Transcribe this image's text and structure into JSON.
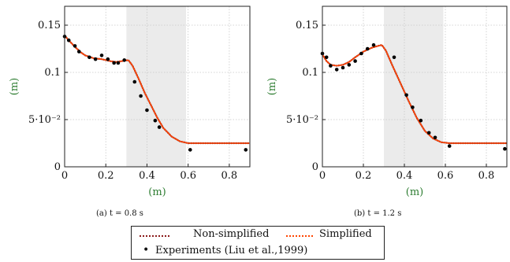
{
  "chart_data": [
    {
      "type": "line",
      "caption": "(a) t = 0.8 s",
      "xlabel": "(m)",
      "ylabel": "(m)",
      "xlim": [
        0,
        0.9
      ],
      "ylim": [
        0,
        0.17
      ],
      "x_ticks": [
        0,
        0.2,
        0.4,
        0.6,
        0.8
      ],
      "x_tick_labels": [
        "0",
        "0.2",
        "0.4",
        "0.6",
        "0.8"
      ],
      "y_ticks": [
        0,
        0.05,
        0.1,
        0.15
      ],
      "y_tick_labels": [
        "0",
        "5·10⁻²",
        "0.1",
        "0.15"
      ],
      "grid": true,
      "shaded_region": [
        0.3,
        0.59
      ],
      "series": [
        {
          "name": "Non-simplified",
          "style": "dotted",
          "color": "#8b1a1a",
          "x": [
            0,
            0.02,
            0.05,
            0.08,
            0.1,
            0.14,
            0.18,
            0.22,
            0.25,
            0.28,
            0.31,
            0.33,
            0.36,
            0.39,
            0.42,
            0.45,
            0.48,
            0.52,
            0.56,
            0.6,
            0.65,
            0.75,
            0.9
          ],
          "y": [
            0.139,
            0.134,
            0.127,
            0.121,
            0.118,
            0.115,
            0.114,
            0.112,
            0.111,
            0.112,
            0.113,
            0.107,
            0.093,
            0.078,
            0.065,
            0.052,
            0.041,
            0.032,
            0.027,
            0.025,
            0.025,
            0.025,
            0.025
          ]
        },
        {
          "name": "Simplified",
          "style": "dotted",
          "color": "#ff4500",
          "x": [
            0,
            0.02,
            0.05,
            0.08,
            0.1,
            0.14,
            0.18,
            0.22,
            0.25,
            0.28,
            0.31,
            0.33,
            0.36,
            0.39,
            0.42,
            0.45,
            0.48,
            0.52,
            0.56,
            0.6,
            0.65,
            0.75,
            0.9
          ],
          "y": [
            0.139,
            0.134,
            0.127,
            0.121,
            0.118,
            0.115,
            0.114,
            0.112,
            0.111,
            0.112,
            0.113,
            0.107,
            0.093,
            0.078,
            0.065,
            0.052,
            0.041,
            0.032,
            0.027,
            0.025,
            0.025,
            0.025,
            0.025
          ]
        },
        {
          "name": "Experiments (Liu et al.,1999)",
          "style": "markers",
          "color": "#000000",
          "x": [
            0,
            0.02,
            0.05,
            0.07,
            0.12,
            0.15,
            0.18,
            0.21,
            0.24,
            0.26,
            0.29,
            0.34,
            0.37,
            0.4,
            0.44,
            0.46,
            0.61,
            0.88
          ],
          "y": [
            0.138,
            0.134,
            0.128,
            0.122,
            0.116,
            0.114,
            0.118,
            0.114,
            0.11,
            0.11,
            0.113,
            0.09,
            0.075,
            0.06,
            0.049,
            0.042,
            0.018,
            0.018
          ]
        }
      ]
    },
    {
      "type": "line",
      "caption": "(b) t = 1.2 s",
      "xlabel": "(m)",
      "ylabel": "(m)",
      "xlim": [
        0,
        0.9
      ],
      "ylim": [
        0,
        0.17
      ],
      "x_ticks": [
        0,
        0.2,
        0.4,
        0.6,
        0.8
      ],
      "x_tick_labels": [
        "0",
        "0.2",
        "0.4",
        "0.6",
        "0.8"
      ],
      "y_ticks": [
        0,
        0.05,
        0.1,
        0.15
      ],
      "y_tick_labels": [
        "0",
        "5·10⁻²",
        "0.1",
        "0.15"
      ],
      "grid": true,
      "shaded_region": [
        0.3,
        0.59
      ],
      "series": [
        {
          "name": "Non-simplified",
          "style": "dotted",
          "color": "#8b1a1a",
          "x": [
            0,
            0.02,
            0.04,
            0.07,
            0.1,
            0.13,
            0.16,
            0.2,
            0.24,
            0.27,
            0.29,
            0.31,
            0.34,
            0.38,
            0.42,
            0.46,
            0.5,
            0.54,
            0.58,
            0.62,
            0.7,
            0.8,
            0.9
          ],
          "y": [
            0.119,
            0.112,
            0.108,
            0.107,
            0.108,
            0.111,
            0.116,
            0.122,
            0.126,
            0.128,
            0.129,
            0.123,
            0.108,
            0.089,
            0.07,
            0.052,
            0.038,
            0.03,
            0.026,
            0.025,
            0.025,
            0.025,
            0.025
          ]
        },
        {
          "name": "Simplified",
          "style": "dotted",
          "color": "#ff4500",
          "x": [
            0,
            0.02,
            0.04,
            0.07,
            0.1,
            0.13,
            0.16,
            0.2,
            0.24,
            0.27,
            0.29,
            0.31,
            0.34,
            0.38,
            0.42,
            0.46,
            0.5,
            0.54,
            0.58,
            0.62,
            0.7,
            0.8,
            0.9
          ],
          "y": [
            0.119,
            0.112,
            0.108,
            0.107,
            0.108,
            0.111,
            0.116,
            0.122,
            0.126,
            0.128,
            0.129,
            0.123,
            0.108,
            0.089,
            0.07,
            0.052,
            0.038,
            0.03,
            0.026,
            0.025,
            0.025,
            0.025,
            0.025
          ]
        },
        {
          "name": "Experiments (Liu et al.,1999)",
          "style": "markers",
          "color": "#000000",
          "x": [
            0,
            0.02,
            0.04,
            0.07,
            0.1,
            0.13,
            0.16,
            0.19,
            0.22,
            0.25,
            0.35,
            0.41,
            0.44,
            0.48,
            0.52,
            0.55,
            0.62,
            0.89
          ],
          "y": [
            0.12,
            0.116,
            0.107,
            0.103,
            0.105,
            0.108,
            0.112,
            0.12,
            0.125,
            0.129,
            0.116,
            0.076,
            0.063,
            0.049,
            0.036,
            0.031,
            0.022,
            0.019
          ]
        }
      ]
    }
  ],
  "legend": {
    "items": [
      {
        "label": "Non-simplified",
        "color": "#8b1a1a",
        "style": "dotted"
      },
      {
        "label": "Simplified",
        "color": "#ff4500",
        "style": "dotted"
      },
      {
        "label": "Experiments (Liu et al.,1999)",
        "color": "#000000",
        "style": "marker"
      }
    ]
  },
  "colors": {
    "axis_label": "#2e7d32",
    "shade": "#ebebeb",
    "grid": "#c8c8c8"
  }
}
